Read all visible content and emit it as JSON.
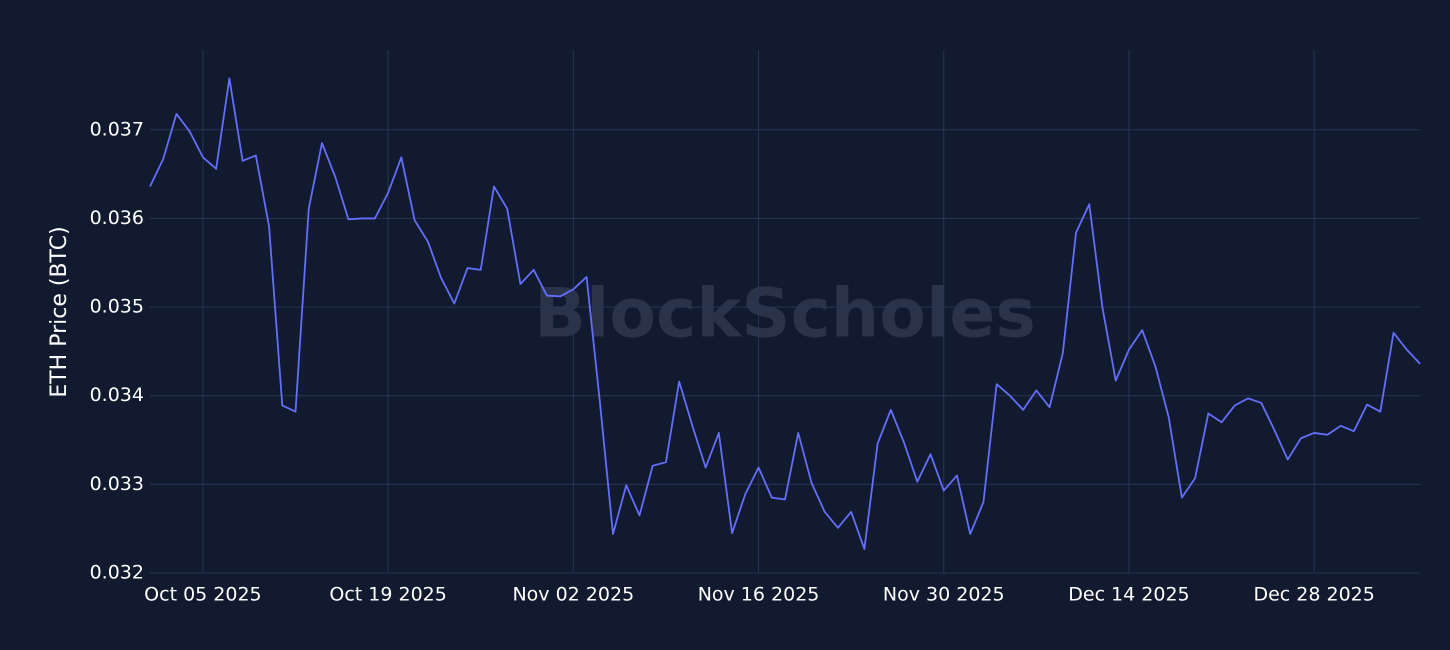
{
  "chart_data": {
    "type": "line",
    "y_label": "ETH Price (BTC)",
    "watermark": "BlockScholes",
    "color": "#636efa",
    "grid": true,
    "x": [
      "2025-10-01",
      "2025-10-02",
      "2025-10-03",
      "2025-10-04",
      "2025-10-05",
      "2025-10-06",
      "2025-10-07",
      "2025-10-08",
      "2025-10-09",
      "2025-10-10",
      "2025-10-11",
      "2025-10-12",
      "2025-10-13",
      "2025-10-14",
      "2025-10-15",
      "2025-10-16",
      "2025-10-17",
      "2025-10-18",
      "2025-10-19",
      "2025-10-20",
      "2025-10-21",
      "2025-10-22",
      "2025-10-23",
      "2025-10-24",
      "2025-10-25",
      "2025-10-26",
      "2025-10-27",
      "2025-10-28",
      "2025-10-29",
      "2025-10-30",
      "2025-10-31",
      "2025-11-01",
      "2025-11-02",
      "2025-11-03",
      "2025-11-04",
      "2025-11-05",
      "2025-11-06",
      "2025-11-07",
      "2025-11-08",
      "2025-11-09",
      "2025-11-10",
      "2025-11-11",
      "2025-11-12",
      "2025-11-13",
      "2025-11-14",
      "2025-11-15",
      "2025-11-16",
      "2025-11-17",
      "2025-11-18",
      "2025-11-19",
      "2025-11-20",
      "2025-11-21",
      "2025-11-22",
      "2025-11-23",
      "2025-11-24",
      "2025-11-25",
      "2025-11-26",
      "2025-11-27",
      "2025-11-28",
      "2025-11-29",
      "2025-11-30",
      "2025-12-01",
      "2025-12-02",
      "2025-12-03",
      "2025-12-04",
      "2025-12-05",
      "2025-12-06",
      "2025-12-07",
      "2025-12-08",
      "2025-12-09",
      "2025-12-10",
      "2025-12-11",
      "2025-12-12",
      "2025-12-13",
      "2025-12-14",
      "2025-12-15",
      "2025-12-16",
      "2025-12-17",
      "2025-12-18",
      "2025-12-19",
      "2025-12-20",
      "2025-12-21",
      "2025-12-22",
      "2025-12-23",
      "2025-12-24",
      "2025-12-25",
      "2025-12-26",
      "2025-12-27",
      "2025-12-28",
      "2025-12-29",
      "2025-12-30",
      "2025-12-31",
      "2026-01-01",
      "2026-01-02",
      "2026-01-03",
      "2026-01-04",
      "2026-01-05"
    ],
    "values": [
      0.03636,
      0.03667,
      0.03718,
      0.03698,
      0.03669,
      0.03656,
      0.03758,
      0.03665,
      0.03671,
      0.03591,
      0.03389,
      0.03382,
      0.03611,
      0.03685,
      0.03647,
      0.03599,
      0.036,
      0.036,
      0.03629,
      0.03669,
      0.03598,
      0.03574,
      0.03533,
      0.03504,
      0.03544,
      0.03542,
      0.03636,
      0.03611,
      0.03526,
      0.03542,
      0.03513,
      0.03512,
      0.0352,
      0.03534,
      0.03394,
      0.03244,
      0.03299,
      0.03265,
      0.03321,
      0.03325,
      0.03416,
      0.03366,
      0.03319,
      0.03358,
      0.03245,
      0.03289,
      0.03319,
      0.03285,
      0.03283,
      0.03358,
      0.03302,
      0.03269,
      0.03251,
      0.03269,
      0.03227,
      0.03346,
      0.03384,
      0.03347,
      0.03303,
      0.03334,
      0.03293,
      0.0331,
      0.03244,
      0.0328,
      0.03413,
      0.034,
      0.03384,
      0.03406,
      0.03387,
      0.03448,
      0.03584,
      0.03616,
      0.03499,
      0.03417,
      0.03452,
      0.03474,
      0.03433,
      0.03376,
      0.03285,
      0.03307,
      0.0338,
      0.0337,
      0.03389,
      0.03397,
      0.03392,
      0.03361,
      0.03328,
      0.03352,
      0.03358,
      0.03356,
      0.03366,
      0.0336,
      0.0339,
      0.03382,
      0.03471,
      0.03452,
      0.03436
    ],
    "xlim": [
      "2025-10-01",
      "2026-01-05"
    ],
    "xticks": [
      {
        "value": "2025-10-05",
        "label": "Oct 05 2025"
      },
      {
        "value": "2025-10-19",
        "label": "Oct 19 2025"
      },
      {
        "value": "2025-11-02",
        "label": "Nov 02 2025"
      },
      {
        "value": "2025-11-16",
        "label": "Nov 16 2025"
      },
      {
        "value": "2025-11-30",
        "label": "Nov 30 2025"
      },
      {
        "value": "2025-12-14",
        "label": "Dec 14 2025"
      },
      {
        "value": "2025-12-28",
        "label": "Dec 28 2025"
      }
    ],
    "ylim": [
      0.032,
      0.0379
    ],
    "yticks": [
      0.032,
      0.033,
      0.034,
      0.035,
      0.036,
      0.037
    ]
  }
}
